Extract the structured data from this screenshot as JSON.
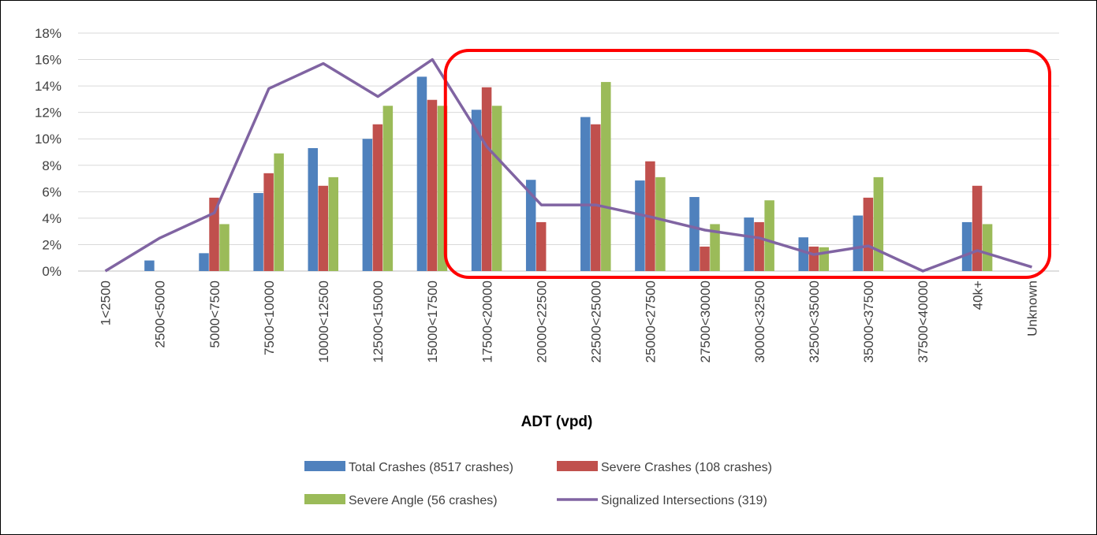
{
  "chart_data": {
    "type": "bar",
    "categories": [
      "1<2500",
      "2500<5000",
      "5000<7500",
      "7500<10000",
      "10000<12500",
      "12500<15000",
      "15000<17500",
      "17500<20000",
      "20000<22500",
      "22500<25000",
      "25000<27500",
      "27500<30000",
      "30000<32500",
      "32500<35000",
      "35000<37500",
      "37500<40000",
      "40k+",
      "Unknown"
    ],
    "series": [
      {
        "name": "Total Crashes (8517 crashes)",
        "kind": "bar",
        "color": "#4F81BD",
        "values": [
          0,
          0.8,
          1.35,
          5.9,
          9.3,
          10.0,
          14.7,
          12.2,
          6.9,
          11.65,
          6.85,
          5.6,
          4.05,
          2.55,
          4.2,
          0,
          3.7,
          0
        ]
      },
      {
        "name": "Severe Crashes (108 crashes)",
        "kind": "bar",
        "color": "#C0504D",
        "values": [
          0,
          0,
          5.55,
          7.4,
          6.45,
          11.1,
          12.95,
          13.9,
          3.7,
          11.1,
          8.3,
          1.85,
          3.7,
          1.85,
          5.55,
          0,
          6.45,
          0
        ]
      },
      {
        "name": "Severe Angle (56 crashes)",
        "kind": "bar",
        "color": "#9BBB59",
        "values": [
          0,
          0,
          3.55,
          8.9,
          7.1,
          12.5,
          12.5,
          12.5,
          0,
          14.3,
          7.1,
          3.55,
          5.35,
          1.8,
          7.1,
          0,
          3.55,
          0
        ]
      },
      {
        "name": "Signalized Intersections (319)",
        "kind": "line",
        "color": "#8064A2",
        "values": [
          0,
          2.5,
          4.4,
          13.8,
          15.7,
          13.2,
          16.0,
          9.4,
          5.0,
          5.0,
          4.1,
          3.1,
          2.5,
          1.25,
          1.9,
          0,
          1.55,
          0.3
        ]
      }
    ],
    "title": "",
    "xlabel": "ADT (vpd)",
    "ylabel": "",
    "ylim": [
      0,
      18
    ],
    "yticks": [
      "0%",
      "2%",
      "4%",
      "6%",
      "8%",
      "10%",
      "12%",
      "14%",
      "16%",
      "18%"
    ],
    "grid": true,
    "legend_position": "bottom",
    "annotation": {
      "shape": "rounded-rectangle",
      "color": "#FF0000",
      "covers": "17500<20000 to Unknown"
    }
  }
}
